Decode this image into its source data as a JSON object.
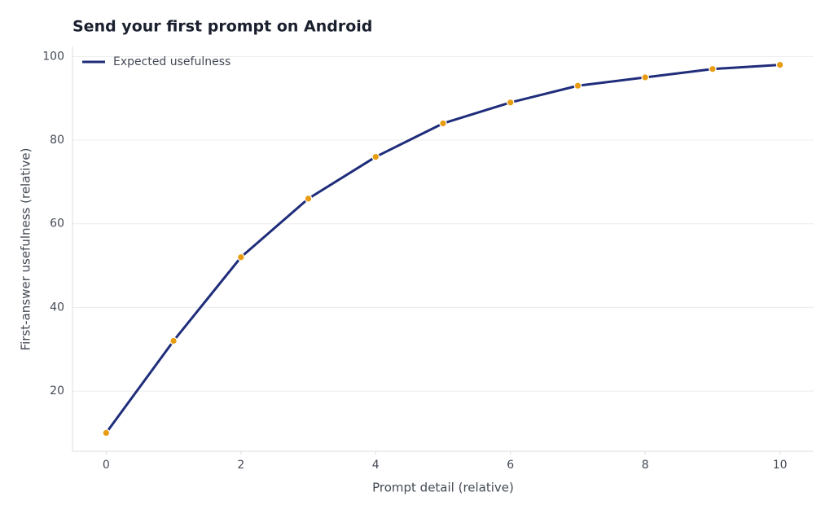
{
  "chart_data": {
    "type": "line",
    "title": "Send your first prompt on Android",
    "x_label": "Prompt detail (relative)",
    "y_label": "First-answer usefulness (relative)",
    "x": [
      0,
      1,
      2,
      3,
      4,
      5,
      6,
      7,
      8,
      9,
      10
    ],
    "series": [
      {
        "name": "Expected usefulness",
        "color": "#1f2d7a",
        "marker_color": "#e89c12",
        "values": [
          10,
          32,
          52,
          66,
          76,
          84,
          89,
          93,
          95,
          97,
          98
        ]
      }
    ],
    "xlim": [
      -0.5,
      10.5
    ],
    "xticks": [
      0,
      2,
      4,
      6,
      8,
      10
    ],
    "ylim": [
      5.6,
      102.4
    ],
    "yticks": [
      20,
      40,
      60,
      80,
      100
    ],
    "grid": true,
    "legend": "upper left"
  }
}
